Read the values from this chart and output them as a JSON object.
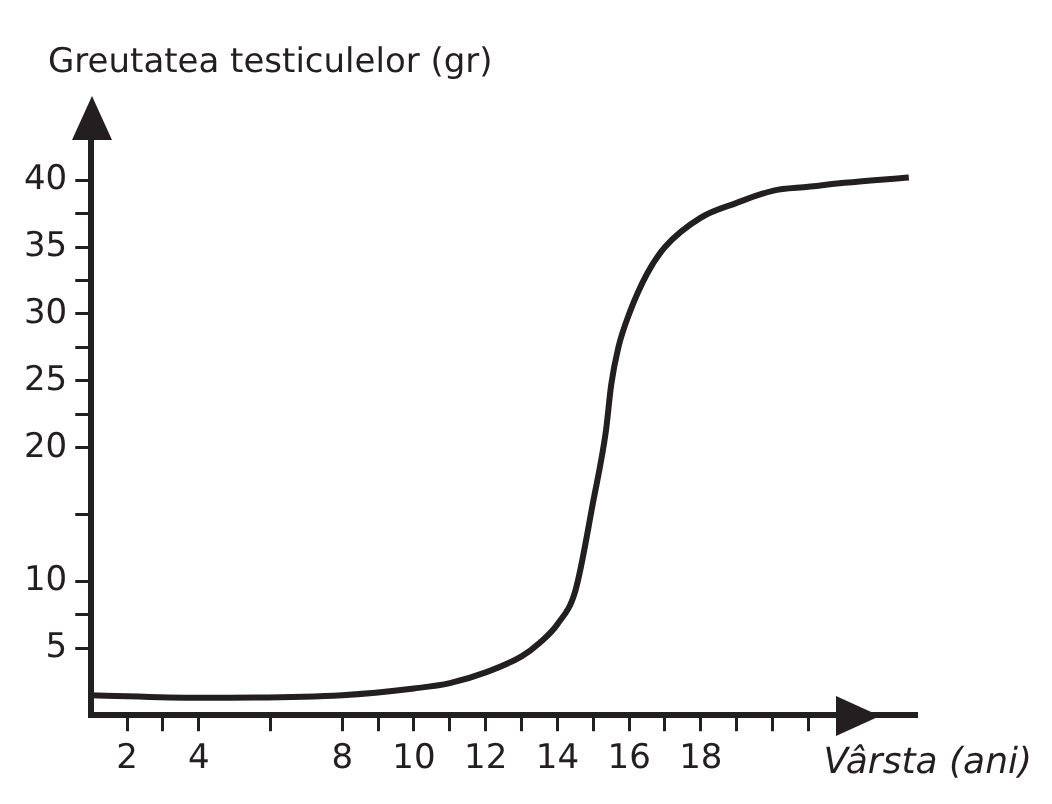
{
  "chart_data": {
    "type": "line",
    "ylabel": "Greutatea testiculelor (gr)",
    "xlabel": "Vârsta (ani)",
    "x": [
      1,
      4,
      8,
      10,
      11,
      12,
      13,
      13.5,
      14,
      14.5,
      15,
      15.35,
      15.5,
      15.7,
      16,
      16.5,
      17,
      18,
      19,
      20,
      21,
      22,
      23.8
    ],
    "series": [
      {
        "color": "#231f20",
        "values": [
          1.5,
          1.3,
          1.5,
          2.0,
          2.4,
          3.2,
          4.4,
          5.4,
          6.8,
          9.3,
          16,
          21.2,
          24.7,
          27.5,
          30,
          33,
          35,
          37.2,
          38.3,
          39.2,
          39.5,
          39.8,
          40.2
        ]
      }
    ],
    "xlim": [
      1,
      24
    ],
    "xticks": [
      2,
      {
        "value": 3,
        "label": null
      },
      4,
      {
        "value": 6,
        "label": null
      },
      8,
      {
        "value": 9,
        "label": null
      },
      10,
      {
        "value": 11,
        "label": null
      },
      12,
      {
        "value": 13,
        "label": null
      },
      14,
      {
        "value": 15,
        "label": null
      },
      16,
      {
        "value": 17,
        "label": null
      },
      18,
      {
        "value": 19,
        "label": null
      },
      {
        "value": 20,
        "label": null
      },
      {
        "value": 21,
        "label": null
      }
    ],
    "ylim": [
      0,
      43
    ],
    "yticks": [
      5,
      {
        "value": 7.5,
        "label": null
      },
      10,
      {
        "value": 15,
        "label": null
      },
      20,
      {
        "value": 22.5,
        "label": null
      },
      25,
      {
        "value": 27.5,
        "label": null
      },
      30,
      {
        "value": 32.5,
        "label": null
      },
      35,
      {
        "value": 37.5,
        "label": null
      },
      40
    ],
    "grid": false,
    "legend": false,
    "marker": "none",
    "line_style": "solid"
  }
}
